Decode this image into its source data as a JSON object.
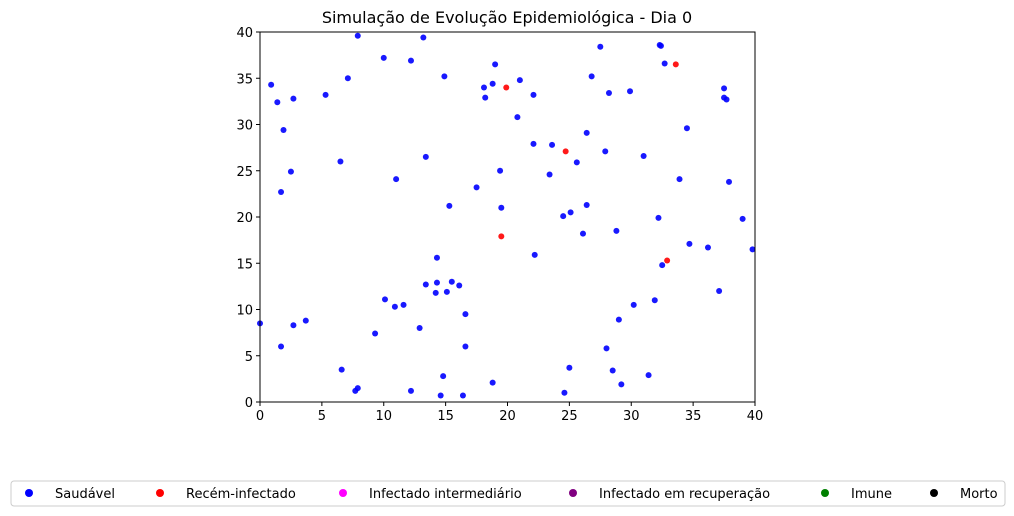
{
  "chart_data": {
    "type": "scatter",
    "title": "Simulação de Evolução Epidemiológica - Dia 0",
    "xlabel": "",
    "ylabel": "",
    "xlim": [
      0,
      40
    ],
    "ylim": [
      0,
      40
    ],
    "xticks": [
      0,
      5,
      10,
      15,
      20,
      25,
      30,
      35,
      40
    ],
    "yticks": [
      0,
      5,
      10,
      15,
      20,
      25,
      30,
      35,
      40
    ],
    "grid": false,
    "legend_position": "bottom",
    "series": [
      {
        "name": "Saudável",
        "color": "#0000ff",
        "points": [
          [
            7.9,
            39.6
          ],
          [
            13.2,
            39.4
          ],
          [
            10.0,
            37.2
          ],
          [
            12.2,
            36.9
          ],
          [
            7.1,
            35.0
          ],
          [
            14.9,
            35.2
          ],
          [
            0.9,
            34.3
          ],
          [
            1.4,
            32.4
          ],
          [
            2.7,
            32.8
          ],
          [
            5.3,
            33.2
          ],
          [
            1.9,
            29.4
          ],
          [
            6.5,
            26.0
          ],
          [
            2.5,
            24.9
          ],
          [
            1.7,
            22.7
          ],
          [
            11.0,
            24.1
          ],
          [
            13.4,
            26.5
          ],
          [
            0.0,
            8.5
          ],
          [
            2.7,
            8.3
          ],
          [
            3.7,
            8.8
          ],
          [
            1.7,
            6.0
          ],
          [
            6.6,
            3.5
          ],
          [
            7.9,
            1.5
          ],
          [
            7.7,
            1.2
          ],
          [
            9.3,
            7.4
          ],
          [
            10.1,
            11.1
          ],
          [
            10.9,
            10.3
          ],
          [
            11.6,
            10.5
          ],
          [
            12.9,
            8.0
          ],
          [
            13.4,
            12.7
          ],
          [
            14.3,
            12.9
          ],
          [
            14.2,
            11.8
          ],
          [
            14.3,
            15.6
          ],
          [
            15.1,
            11.9
          ],
          [
            15.5,
            13.0
          ],
          [
            16.1,
            12.6
          ],
          [
            16.6,
            9.5
          ],
          [
            15.3,
            21.2
          ],
          [
            16.6,
            6.0
          ],
          [
            12.2,
            1.2
          ],
          [
            14.8,
            2.8
          ],
          [
            14.6,
            0.7
          ],
          [
            16.4,
            0.7
          ],
          [
            18.1,
            34.0
          ],
          [
            18.2,
            32.9
          ],
          [
            18.8,
            34.4
          ],
          [
            19.0,
            36.5
          ],
          [
            21.0,
            34.8
          ],
          [
            22.1,
            33.2
          ],
          [
            20.8,
            30.8
          ],
          [
            22.1,
            27.9
          ],
          [
            23.6,
            27.8
          ],
          [
            19.4,
            25.0
          ],
          [
            17.5,
            23.2
          ],
          [
            19.5,
            21.0
          ],
          [
            22.2,
            15.9
          ],
          [
            23.4,
            24.6
          ],
          [
            24.5,
            20.1
          ],
          [
            25.1,
            20.5
          ],
          [
            25.6,
            25.9
          ],
          [
            26.1,
            18.2
          ],
          [
            26.4,
            21.3
          ],
          [
            26.4,
            29.1
          ],
          [
            26.8,
            35.2
          ],
          [
            27.5,
            38.4
          ],
          [
            28.2,
            33.4
          ],
          [
            27.9,
            27.1
          ],
          [
            29.9,
            33.6
          ],
          [
            31.0,
            26.6
          ],
          [
            32.3,
            38.6
          ],
          [
            32.4,
            38.5
          ],
          [
            32.7,
            36.6
          ],
          [
            34.5,
            29.6
          ],
          [
            33.9,
            24.1
          ],
          [
            32.2,
            19.9
          ],
          [
            32.5,
            14.8
          ],
          [
            28.8,
            18.5
          ],
          [
            34.7,
            17.1
          ],
          [
            36.2,
            16.7
          ],
          [
            37.5,
            32.9
          ],
          [
            37.7,
            32.7
          ],
          [
            37.5,
            33.9
          ],
          [
            37.9,
            23.8
          ],
          [
            39.0,
            19.8
          ],
          [
            39.8,
            16.5
          ],
          [
            37.1,
            12.0
          ],
          [
            31.9,
            11.0
          ],
          [
            30.2,
            10.5
          ],
          [
            29.0,
            8.9
          ],
          [
            25.0,
            3.7
          ],
          [
            24.6,
            1.0
          ],
          [
            28.0,
            5.8
          ],
          [
            28.5,
            3.4
          ],
          [
            29.2,
            1.9
          ],
          [
            31.4,
            2.9
          ],
          [
            18.8,
            2.1
          ]
        ]
      },
      {
        "name": "Recém-infectado",
        "color": "#ff0000",
        "points": [
          [
            19.9,
            34.0
          ],
          [
            24.7,
            27.1
          ],
          [
            33.6,
            36.5
          ],
          [
            19.5,
            17.9
          ],
          [
            32.9,
            15.3
          ]
        ]
      },
      {
        "name": "Infectado intermediário",
        "color": "#ff00ff",
        "points": []
      },
      {
        "name": "Infectado em recuperação",
        "color": "#800080",
        "points": []
      },
      {
        "name": "Imune",
        "color": "#008000",
        "points": []
      },
      {
        "name": "Morto",
        "color": "#000000",
        "points": []
      }
    ]
  }
}
